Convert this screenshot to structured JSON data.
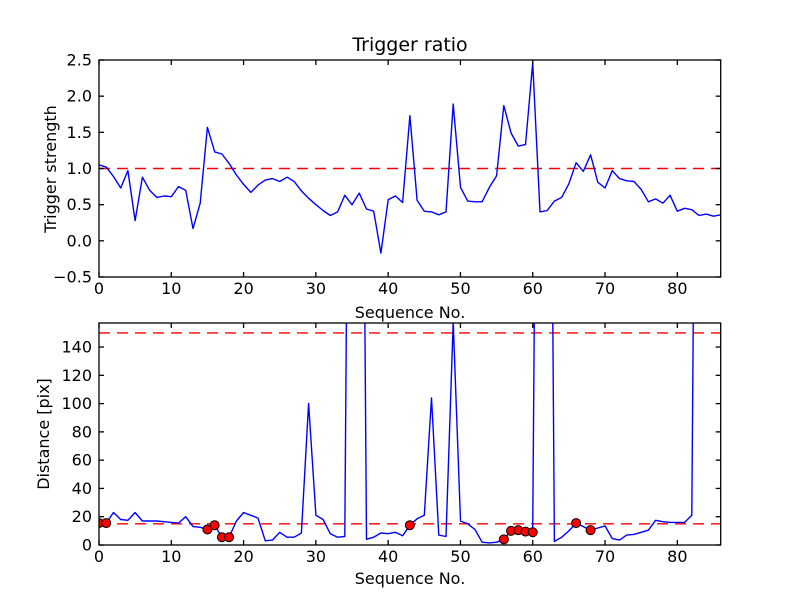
{
  "figure": {
    "title": "Trigger ratio",
    "background": "#ffffff"
  },
  "colors": {
    "line": "#0000ff",
    "threshold": "#ff0000",
    "marker_fill": "#ff0000",
    "marker_edge": "#000000",
    "axis": "#000000",
    "text": "#000000"
  },
  "chart_data": [
    {
      "id": "trigger",
      "type": "line",
      "title": "Trigger ratio",
      "xlabel": "Sequence No.",
      "ylabel": "Trigger strength",
      "xlim": [
        0,
        86
      ],
      "ylim": [
        -0.5,
        2.5
      ],
      "xticks": [
        0,
        10,
        20,
        30,
        40,
        50,
        60,
        70,
        80
      ],
      "xtick_labels": [
        "0",
        "10",
        "20",
        "30",
        "40",
        "50",
        "60",
        "70",
        "80"
      ],
      "yticks": [
        -0.5,
        0.0,
        0.5,
        1.0,
        1.5,
        2.0,
        2.5
      ],
      "ytick_labels": [
        "−0.5",
        "0.0",
        "0.5",
        "1.0",
        "1.5",
        "2.0",
        "2.5"
      ],
      "grid": false,
      "legend": null,
      "thresholds": [
        1.0
      ],
      "values": [
        1.05,
        1.02,
        0.89,
        0.73,
        0.97,
        0.28,
        0.88,
        0.7,
        0.6,
        0.62,
        0.61,
        0.75,
        0.7,
        0.17,
        0.52,
        1.57,
        1.23,
        1.2,
        1.07,
        0.91,
        0.78,
        0.67,
        0.77,
        0.84,
        0.86,
        0.82,
        0.88,
        0.82,
        0.69,
        0.59,
        0.5,
        0.42,
        0.35,
        0.4,
        0.63,
        0.5,
        0.66,
        0.44,
        0.41,
        -0.17,
        0.57,
        0.62,
        0.53,
        1.73,
        0.56,
        0.41,
        0.4,
        0.36,
        0.4,
        1.89,
        0.74,
        0.55,
        0.54,
        0.54,
        0.74,
        0.9,
        1.87,
        1.49,
        1.31,
        1.33,
        2.46,
        0.4,
        0.42,
        0.55,
        0.6,
        0.79,
        1.08,
        0.96,
        1.19,
        0.81,
        0.73,
        0.97,
        0.86,
        0.83,
        0.82,
        0.71,
        0.54,
        0.58,
        0.52,
        0.63,
        0.41,
        0.45,
        0.43,
        0.35,
        0.37,
        0.34,
        0.36
      ]
    },
    {
      "id": "distance",
      "type": "line",
      "title": "",
      "xlabel": "Sequence No.",
      "ylabel": "Distance [pix]",
      "xlim": [
        0,
        86
      ],
      "ylim": [
        0,
        157
      ],
      "xticks": [
        0,
        10,
        20,
        30,
        40,
        50,
        60,
        70,
        80
      ],
      "xtick_labels": [
        "0",
        "10",
        "20",
        "30",
        "40",
        "50",
        "60",
        "70",
        "80"
      ],
      "yticks": [
        0,
        20,
        40,
        60,
        80,
        100,
        120,
        140
      ],
      "ytick_labels": [
        "0",
        "20",
        "40",
        "60",
        "80",
        "100",
        "120",
        "140"
      ],
      "grid": false,
      "legend": null,
      "thresholds": [
        150,
        15
      ],
      "values": [
        15.5,
        15.5,
        23,
        18,
        17.5,
        23,
        17,
        17,
        17,
        16.5,
        16,
        15.5,
        20,
        13,
        12.5,
        11,
        14,
        5.5,
        5.5,
        17,
        23,
        21,
        19,
        3,
        3.5,
        9,
        5.5,
        5.5,
        8.5,
        100,
        21,
        18,
        8,
        5.5,
        6,
        700,
        700,
        4,
        5.5,
        8.5,
        8,
        9,
        6.5,
        14,
        18.5,
        21,
        104,
        7,
        6,
        158,
        17,
        15,
        11,
        2,
        1.5,
        2,
        4,
        10,
        10.5,
        9.5,
        9,
        700,
        700,
        2.5,
        5.5,
        10,
        15.5,
        13,
        10.5,
        12,
        13.5,
        4.5,
        3.5,
        7,
        7.5,
        9,
        10.5,
        17.5,
        16.5,
        16,
        16,
        16,
        21,
        700,
        700,
        700,
        700
      ],
      "markers": {
        "shape": "circle",
        "x": [
          0,
          1,
          15,
          16,
          17,
          18,
          43,
          56,
          57,
          58,
          59,
          60,
          66,
          68
        ],
        "y": [
          15.5,
          15.5,
          11,
          14,
          5.5,
          5.5,
          14,
          4,
          10,
          10.5,
          9.5,
          9,
          15.5,
          10.5
        ]
      }
    }
  ]
}
